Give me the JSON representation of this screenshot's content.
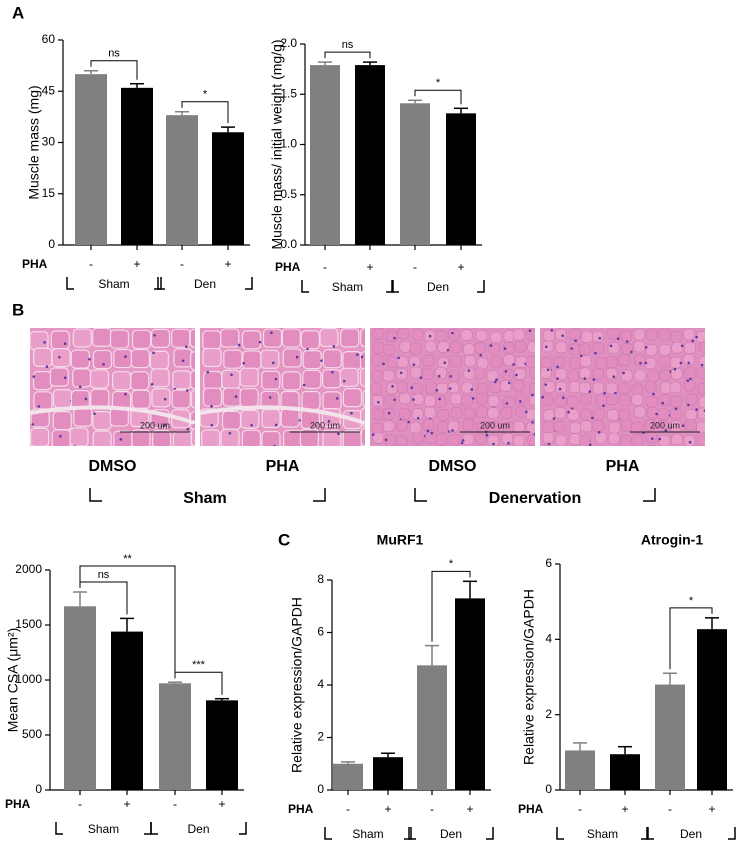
{
  "panels": {
    "a": "A",
    "b": "B",
    "c": "C"
  },
  "histology": {
    "images": [
      {
        "label": "DMSO",
        "scale_bar": "200 um"
      },
      {
        "label": "PHA",
        "scale_bar": "200 um"
      },
      {
        "label": "DMSO",
        "scale_bar": "200 um"
      },
      {
        "label": "PHA",
        "scale_bar": "200 um"
      }
    ],
    "groups": [
      "Sham",
      "Denervation"
    ]
  },
  "chart_data": [
    {
      "type": "bar",
      "y_label": "Muscle mass (mg)",
      "ylim": [
        0,
        60
      ],
      "yticks": [
        0,
        15,
        30,
        45,
        60
      ],
      "categories": [
        "-",
        "+",
        "-",
        "+"
      ],
      "row_label": "PHA",
      "groups": [
        "Sham",
        "Den"
      ],
      "values": [
        50,
        46,
        38,
        33
      ],
      "errors": [
        1,
        1.2,
        1,
        1.5
      ],
      "colors": [
        "#808080",
        "#000000",
        "#808080",
        "#000000"
      ],
      "annotations": [
        {
          "text": "ns",
          "bars": [
            0,
            1
          ]
        },
        {
          "text": "*",
          "bars": [
            2,
            3
          ]
        }
      ]
    },
    {
      "type": "bar",
      "y_label": "Muscle mass/ initial weight (mg/g)",
      "ylim": [
        0,
        2.0
      ],
      "yticks": [
        {
          "value": 0,
          "label": "0.0"
        },
        0.5,
        {
          "value": 1,
          "label": "1.0"
        },
        1.5,
        {
          "value": 2,
          "label": "2.0"
        }
      ],
      "categories": [
        "-",
        "+",
        "-",
        "+"
      ],
      "row_label": "PHA",
      "groups": [
        "Sham",
        "Den"
      ],
      "values": [
        1.79,
        1.79,
        1.41,
        1.31
      ],
      "errors": [
        0.03,
        0.03,
        0.03,
        0.05
      ],
      "colors": [
        "#808080",
        "#000000",
        "#808080",
        "#000000"
      ],
      "annotations": [
        {
          "text": "ns",
          "bars": [
            0,
            1
          ]
        },
        {
          "text": "*",
          "bars": [
            2,
            3
          ]
        }
      ]
    },
    {
      "type": "bar",
      "y_label": "Mean CSA (μm²)",
      "ylim": [
        0,
        2000
      ],
      "yticks": [
        0,
        500,
        1000,
        1500,
        2000
      ],
      "categories": [
        "-",
        "+",
        "-",
        "+"
      ],
      "row_label": "PHA",
      "groups": [
        "Sham",
        "Den"
      ],
      "values": [
        1670,
        1440,
        970,
        815
      ],
      "errors": [
        130,
        120,
        10,
        15
      ],
      "colors": [
        "#808080",
        "#000000",
        "#808080",
        "#000000"
      ],
      "annotations": [
        {
          "text": "ns",
          "bars": [
            0,
            1
          ]
        },
        {
          "text": "**",
          "bars": [
            0,
            2
          ]
        },
        {
          "text": "***",
          "bars": [
            2,
            3
          ]
        }
      ]
    },
    {
      "type": "bar",
      "title": "MuRF1",
      "y_label": "Relative expression/GAPDH",
      "ylim": [
        0,
        8
      ],
      "yticks": [
        0,
        2,
        4,
        6,
        8
      ],
      "categories": [
        "-",
        "+",
        "-",
        "+"
      ],
      "row_label": "PHA",
      "groups": [
        "Sham",
        "Den"
      ],
      "values": [
        1.0,
        1.25,
        4.75,
        7.3
      ],
      "errors": [
        0.07,
        0.15,
        0.75,
        0.65
      ],
      "colors": [
        "#808080",
        "#000000",
        "#808080",
        "#000000"
      ],
      "annotations": [
        {
          "text": "*",
          "bars": [
            2,
            3
          ]
        }
      ]
    },
    {
      "type": "bar",
      "title": "Atrogin-1",
      "y_label": "Relative expression/GAPDH",
      "ylim": [
        0,
        6
      ],
      "yticks": [
        0,
        2,
        4,
        6
      ],
      "categories": [
        "-",
        "+",
        "-",
        "+"
      ],
      "row_label": "PHA",
      "groups": [
        "Sham",
        "Den"
      ],
      "values": [
        1.05,
        0.95,
        2.8,
        4.27
      ],
      "errors": [
        0.2,
        0.2,
        0.3,
        0.3
      ],
      "colors": [
        "#808080",
        "#000000",
        "#808080",
        "#000000"
      ],
      "annotations": [
        {
          "text": "*",
          "bars": [
            2,
            3
          ]
        }
      ]
    }
  ]
}
